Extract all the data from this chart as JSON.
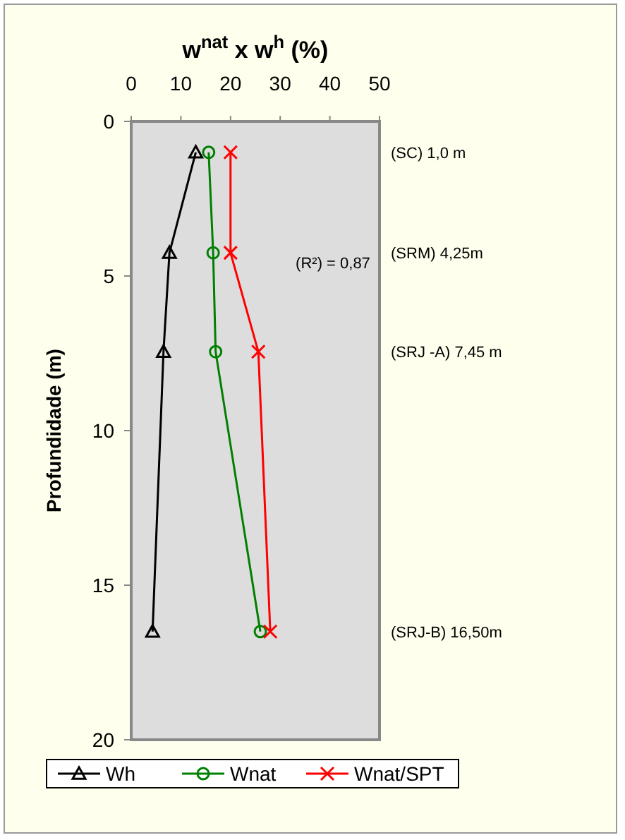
{
  "chart_data": {
    "type": "line",
    "xlabel": "w$^{nat}$ x w$^{h}$ (%)",
    "ylabel": "Profundidade (m)",
    "xlim": [
      0,
      50
    ],
    "xticks": [
      0,
      10,
      20,
      30,
      40,
      50
    ],
    "ylim": [
      20,
      0
    ],
    "yticks": [
      0,
      5,
      10,
      15,
      20
    ],
    "grid": false,
    "legend": "bottom",
    "series": [
      {
        "name": "Wh",
        "color": "#000000",
        "marker": "triangle",
        "x": [
          13,
          7.7,
          6.5,
          4.3
        ],
        "values": [
          1,
          4.25,
          7.45,
          16.5
        ]
      },
      {
        "name": "Wnat",
        "color": "#008000",
        "marker": "circle",
        "x": [
          15.6,
          16.5,
          17,
          26
        ],
        "values": [
          1,
          4.25,
          7.45,
          16.5
        ]
      },
      {
        "name": "Wnat/SPT",
        "color": "#ff0000",
        "marker": "cross",
        "x": [
          20,
          20,
          25.6,
          28
        ],
        "values": [
          1,
          4.25,
          7.45,
          16.5
        ]
      }
    ],
    "annotations": [
      "(SC) 1,0 m",
      "(SRM) 4,25m",
      "(SRJ -A) 7,45 m",
      "(SRJ-B) 16,50m",
      "(R²) = 0,87"
    ]
  }
}
